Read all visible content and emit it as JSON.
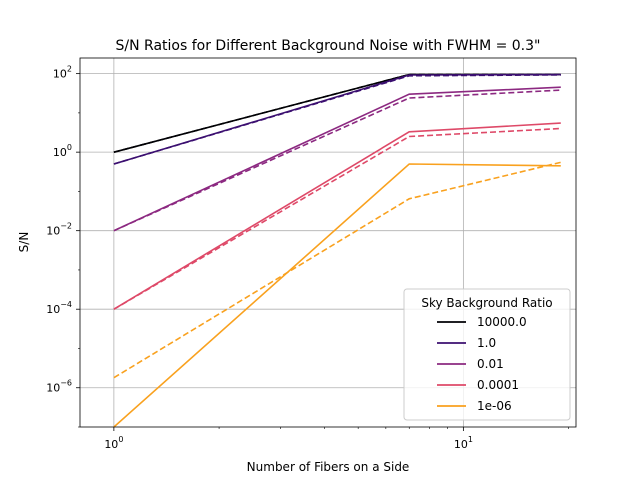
{
  "chart_data": {
    "type": "line",
    "title": "S/N Ratios for Different Background Noise with FWHM = 0.3\"",
    "xlabel": "Number of Fibers on a Side",
    "ylabel": "S/N",
    "xscale": "log",
    "yscale": "log",
    "xlim": [
      0.8,
      21
    ],
    "ylim": [
      1e-07,
      250
    ],
    "x": [
      1,
      7,
      19
    ],
    "x_ticks": [
      {
        "value": 1,
        "base": "10",
        "exp": "0"
      },
      {
        "value": 10,
        "base": "10",
        "exp": "1"
      }
    ],
    "y_ticks": [
      {
        "value": 1e-06,
        "base": "10",
        "exp": "−6"
      },
      {
        "value": 0.0001,
        "base": "10",
        "exp": "−4"
      },
      {
        "value": 0.01,
        "base": "10",
        "exp": "−2"
      },
      {
        "value": 1,
        "base": "10",
        "exp": "0"
      },
      {
        "value": 100,
        "base": "10",
        "exp": "2"
      }
    ],
    "grid": true,
    "legend": {
      "title": "Sky Background Ratio",
      "placement": "lower-right"
    },
    "series": [
      {
        "name": "10000.0",
        "color": "#000004",
        "solid": [
          1.0,
          95,
          95
        ],
        "dashed": [
          1.0,
          95,
          95
        ]
      },
      {
        "name": "1.0",
        "color": "#3b0f70",
        "solid": [
          0.5,
          92,
          95
        ],
        "dashed": [
          0.5,
          88,
          93
        ]
      },
      {
        "name": "0.01",
        "color": "#8c2981",
        "solid": [
          0.01,
          30,
          45
        ],
        "dashed": [
          0.01,
          24,
          38
        ]
      },
      {
        "name": "0.0001",
        "color": "#de4968",
        "solid": [
          0.0001,
          3.3,
          5.5
        ],
        "dashed": [
          0.0001,
          2.5,
          4.0
        ]
      },
      {
        "name": "1e-06",
        "color": "#f9a11e",
        "solid": [
          1e-07,
          0.5,
          0.45
        ],
        "dashed": [
          1.8e-06,
          0.065,
          0.55
        ]
      }
    ]
  }
}
